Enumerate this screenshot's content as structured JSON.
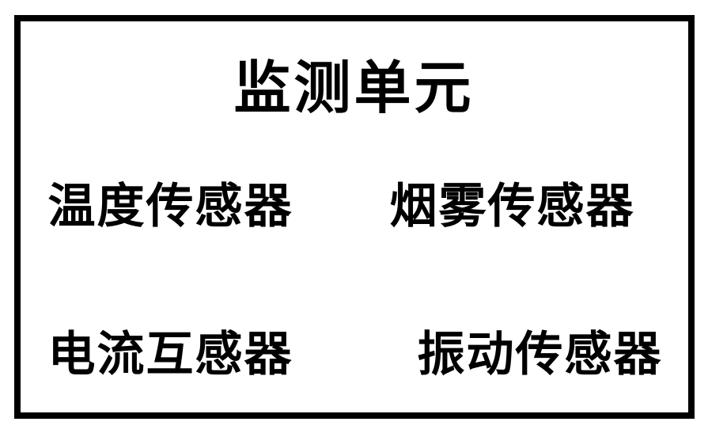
{
  "diagram": {
    "type": "infographic",
    "title": "监测单元",
    "border_color": "#000000",
    "border_width": 8,
    "background_color": "#ffffff",
    "text_color": "#000000",
    "title_fontsize": 72,
    "item_fontsize": 60,
    "font_family": "SimSun",
    "font_weight": "bold",
    "sensors": [
      {
        "label": "温度传感器"
      },
      {
        "label": "烟雾传感器"
      },
      {
        "label": "电流互感器"
      },
      {
        "label": "振动传感器"
      }
    ]
  }
}
